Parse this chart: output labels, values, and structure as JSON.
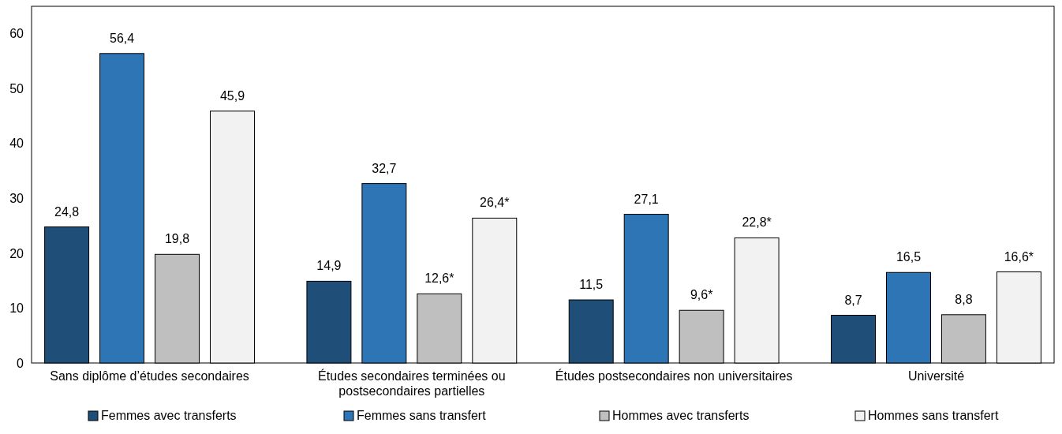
{
  "chart_data": {
    "type": "bar",
    "categories": [
      "Sans diplôme d’études secondaires",
      "Études secondaires terminées ou postsecondaires partielles",
      "Études postsecondaires non universitaires",
      "Université"
    ],
    "series": [
      {
        "name": "Femmes avec transferts",
        "color": "#1f4e79",
        "values": [
          24.8,
          14.9,
          11.5,
          8.7
        ],
        "value_labels": [
          "24,8",
          "14,9",
          "11,5",
          "8,7"
        ]
      },
      {
        "name": "Femmes sans transfert",
        "color": "#2e75b6",
        "values": [
          56.4,
          32.7,
          27.1,
          16.5
        ],
        "value_labels": [
          "56,4",
          "32,7",
          "27,1",
          "16,5"
        ]
      },
      {
        "name": "Hommes avec transferts",
        "color": "#bfbfbf",
        "values": [
          19.8,
          12.6,
          9.6,
          8.8
        ],
        "value_labels": [
          "19,8",
          "12,6*",
          "9,6*",
          "8,8"
        ]
      },
      {
        "name": "Hommes sans transfert",
        "color": "#f2f2f2",
        "values": [
          45.9,
          26.4,
          22.8,
          16.6
        ],
        "value_labels": [
          "45,9",
          "26,4*",
          "22,8*",
          "16,6*"
        ]
      }
    ],
    "ylim": [
      0,
      65
    ],
    "yticks": [
      0,
      10,
      20,
      30,
      40,
      50,
      60
    ],
    "grid": false,
    "legend": "bottom"
  }
}
